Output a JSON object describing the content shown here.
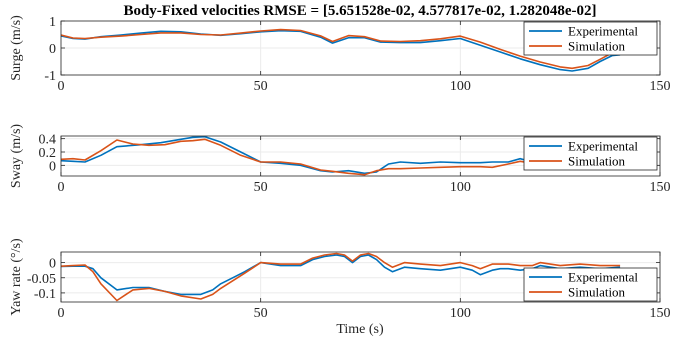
{
  "colors": {
    "experimental": "#0072BD",
    "simulation": "#D95319",
    "axis": "#262626",
    "grid": "#ebebeb",
    "background": "#ffffff"
  },
  "title": "Body-Fixed velocities RMSE = [5.651528e-02, 4.577817e-02, 1.282048e-02]",
  "xlabel": "Time (s)",
  "chart_data": [
    {
      "type": "line",
      "ylabel": "Surge (m/s)",
      "xlim": [
        0,
        150
      ],
      "ylim": [
        -1,
        1
      ],
      "xticks": [
        0,
        50,
        100,
        150
      ],
      "xtick_labels": [
        "0",
        "50",
        "100",
        "150"
      ],
      "yticks": [
        -1,
        0,
        1
      ],
      "ytick_labels": [
        "-1",
        "0",
        "1"
      ],
      "grid": true,
      "legend_position": "top-right",
      "series": [
        {
          "name": "Experimental",
          "x": [
            0,
            3,
            6,
            10,
            15,
            20,
            25,
            30,
            35,
            40,
            45,
            50,
            55,
            60,
            65,
            68,
            72,
            76,
            80,
            85,
            90,
            95,
            100,
            105,
            110,
            115,
            120,
            125,
            128,
            132,
            135,
            138,
            140
          ],
          "y": [
            0.45,
            0.35,
            0.33,
            0.42,
            0.48,
            0.55,
            0.62,
            0.6,
            0.52,
            0.47,
            0.53,
            0.6,
            0.64,
            0.62,
            0.4,
            0.18,
            0.38,
            0.38,
            0.22,
            0.2,
            0.2,
            0.27,
            0.35,
            0.1,
            -0.15,
            -0.4,
            -0.62,
            -0.8,
            -0.85,
            -0.75,
            -0.5,
            -0.28,
            -0.25
          ]
        },
        {
          "name": "Simulation",
          "x": [
            0,
            3,
            6,
            10,
            15,
            20,
            25,
            30,
            35,
            40,
            45,
            50,
            55,
            60,
            65,
            68,
            72,
            76,
            80,
            85,
            90,
            95,
            100,
            105,
            110,
            115,
            120,
            125,
            128,
            132,
            135,
            138,
            140
          ],
          "y": [
            0.48,
            0.37,
            0.35,
            0.4,
            0.44,
            0.5,
            0.56,
            0.56,
            0.5,
            0.48,
            0.55,
            0.63,
            0.68,
            0.65,
            0.45,
            0.24,
            0.46,
            0.42,
            0.26,
            0.24,
            0.27,
            0.34,
            0.44,
            0.22,
            -0.05,
            -0.3,
            -0.52,
            -0.7,
            -0.75,
            -0.65,
            -0.42,
            -0.18,
            -0.12
          ]
        }
      ]
    },
    {
      "type": "line",
      "ylabel": "Sway (m/s)",
      "xlim": [
        0,
        150
      ],
      "ylim": [
        -0.16,
        0.44
      ],
      "xticks": [
        0,
        50,
        100,
        150
      ],
      "xtick_labels": [
        "0",
        "50",
        "100",
        "150"
      ],
      "yticks": [
        0,
        0.2,
        0.4
      ],
      "ytick_labels": [
        "0",
        "0.2",
        "0.4"
      ],
      "grid": true,
      "legend_position": "top-right",
      "series": [
        {
          "name": "Experimental",
          "x": [
            0,
            3,
            6,
            10,
            14,
            20,
            25,
            30,
            33,
            36,
            40,
            45,
            50,
            55,
            60,
            65,
            68,
            72,
            76,
            79,
            82,
            85,
            90,
            95,
            100,
            105,
            108,
            112,
            115,
            118,
            120,
            125,
            130,
            135,
            140
          ],
          "y": [
            0.07,
            0.06,
            0.05,
            0.15,
            0.28,
            0.31,
            0.34,
            0.39,
            0.42,
            0.43,
            0.35,
            0.2,
            0.05,
            0.03,
            0.0,
            -0.08,
            -0.1,
            -0.08,
            -0.12,
            -0.1,
            0.02,
            0.05,
            0.03,
            0.05,
            0.04,
            0.04,
            0.05,
            0.05,
            0.1,
            0.05,
            0.01,
            0.02,
            -0.02,
            0.0,
            0.0
          ]
        },
        {
          "name": "Simulation",
          "x": [
            0,
            3,
            6,
            10,
            14,
            18,
            22,
            26,
            30,
            33,
            36,
            40,
            45,
            50,
            55,
            60,
            65,
            68,
            72,
            76,
            79,
            82,
            85,
            90,
            95,
            100,
            105,
            108,
            112,
            115,
            118,
            120,
            125,
            130,
            135,
            140
          ],
          "y": [
            0.09,
            0.1,
            0.08,
            0.22,
            0.38,
            0.32,
            0.3,
            0.31,
            0.36,
            0.37,
            0.39,
            0.3,
            0.15,
            0.05,
            0.05,
            0.02,
            -0.07,
            -0.09,
            -0.12,
            -0.14,
            -0.08,
            -0.05,
            -0.05,
            -0.04,
            -0.03,
            -0.02,
            -0.02,
            -0.03,
            0.02,
            0.06,
            0.03,
            0.0,
            0.0,
            -0.02,
            0.0,
            0.0
          ]
        }
      ]
    },
    {
      "type": "line",
      "ylabel": "Yaw rate (°/s)",
      "xlim": [
        0,
        150
      ],
      "ylim": [
        -0.13,
        0.035
      ],
      "xticks": [
        0,
        50,
        100,
        150
      ],
      "xtick_labels": [
        "0",
        "50",
        "100",
        "150"
      ],
      "yticks": [
        -0.1,
        -0.05,
        0
      ],
      "ytick_labels": [
        "-0.1",
        "-0.05",
        "0"
      ],
      "grid": true,
      "legend_position": "bottom-right",
      "series": [
        {
          "name": "Experimental",
          "x": [
            0,
            3,
            6,
            8,
            10,
            14,
            18,
            22,
            26,
            30,
            35,
            38,
            40,
            43,
            46,
            50,
            55,
            60,
            63,
            66,
            69,
            71,
            73,
            75,
            77,
            79,
            81,
            83,
            86,
            90,
            95,
            100,
            103,
            105,
            108,
            110,
            112,
            115,
            118,
            120,
            125,
            130,
            135,
            140
          ],
          "y": [
            -0.013,
            -0.012,
            -0.012,
            -0.02,
            -0.05,
            -0.09,
            -0.082,
            -0.082,
            -0.095,
            -0.105,
            -0.105,
            -0.09,
            -0.07,
            -0.05,
            -0.03,
            0.0,
            -0.01,
            -0.01,
            0.01,
            0.02,
            0.025,
            0.02,
            0.0,
            0.02,
            0.025,
            0.01,
            -0.015,
            -0.03,
            -0.015,
            -0.02,
            -0.025,
            -0.015,
            -0.025,
            -0.04,
            -0.025,
            -0.02,
            -0.02,
            -0.025,
            -0.02,
            -0.01,
            -0.02,
            -0.015,
            -0.02,
            -0.015
          ]
        },
        {
          "name": "Simulation",
          "x": [
            0,
            3,
            6,
            8,
            10,
            14,
            18,
            22,
            26,
            30,
            35,
            38,
            40,
            43,
            46,
            50,
            55,
            60,
            63,
            66,
            69,
            71,
            73,
            75,
            77,
            79,
            81,
            83,
            86,
            90,
            95,
            100,
            103,
            105,
            108,
            110,
            112,
            115,
            118,
            120,
            125,
            130,
            135,
            140
          ],
          "y": [
            -0.012,
            -0.01,
            -0.008,
            -0.03,
            -0.07,
            -0.125,
            -0.09,
            -0.085,
            -0.095,
            -0.11,
            -0.12,
            -0.105,
            -0.085,
            -0.06,
            -0.035,
            0.0,
            -0.005,
            -0.005,
            0.015,
            0.025,
            0.03,
            0.025,
            0.005,
            0.025,
            0.03,
            0.02,
            0.0,
            -0.015,
            0.0,
            -0.005,
            -0.01,
            0.0,
            -0.01,
            -0.02,
            -0.005,
            -0.005,
            -0.005,
            -0.01,
            -0.01,
            0.0,
            -0.01,
            -0.005,
            -0.01,
            -0.01
          ]
        }
      ]
    }
  ]
}
